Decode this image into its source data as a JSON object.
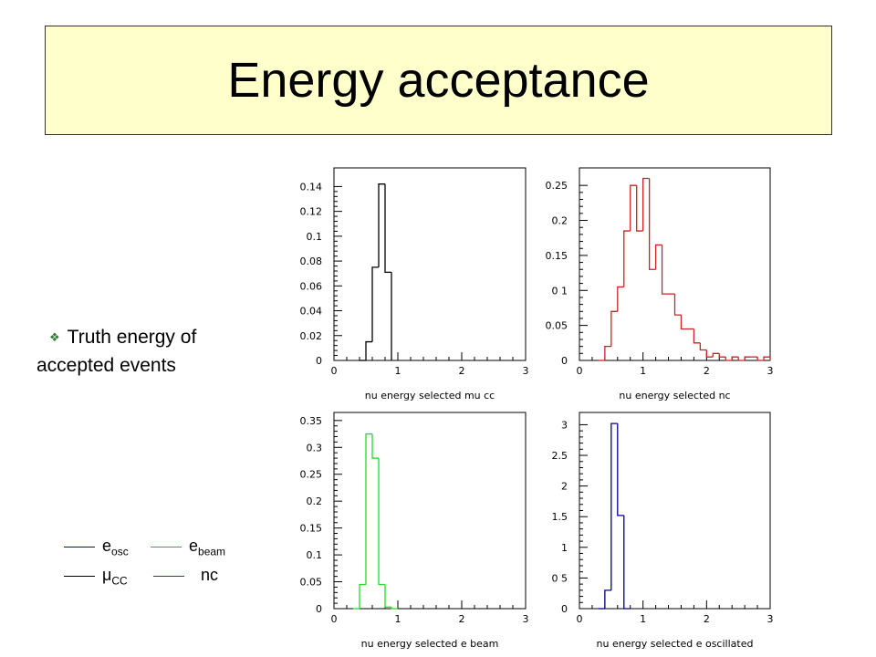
{
  "slide": {
    "title": "Energy acceptance",
    "bullet": {
      "icon": "diamond-bullet-icon",
      "line1": "Truth energy of",
      "line2": "accepted events"
    },
    "legend": [
      {
        "main": "e",
        "sub": "osc",
        "color": "#0000cc"
      },
      {
        "main": "e",
        "sub": "beam",
        "color": "#00cc00"
      },
      {
        "main": "μ",
        "sub": "CC",
        "color": "#000000"
      },
      {
        "main": "nc",
        "sub": "",
        "color": "#cc0000"
      }
    ]
  },
  "chart_data": [
    {
      "type": "histogram",
      "xlabel": "nu energy selected mu cc",
      "color": "#000000",
      "xlim": [
        0,
        3
      ],
      "ylim": [
        0,
        0.155
      ],
      "xticks": [
        0,
        1,
        2,
        3
      ],
      "yticks": [
        0,
        0.02,
        0.04,
        0.06,
        0.08,
        0.1,
        0.12,
        0.14
      ],
      "ytick_labels": [
        "0",
        "0.02",
        "0.04",
        "0.06",
        "0.08",
        "0.1",
        "0.12",
        "0.14"
      ],
      "bin_edges": [
        0.4,
        0.5,
        0.6,
        0.7,
        0.8,
        0.9
      ],
      "values": [
        0.0,
        0.015,
        0.075,
        0.142,
        0.071
      ]
    },
    {
      "type": "histogram",
      "xlabel": "nu energy selected nc",
      "color": "#cc2222",
      "xlim": [
        0,
        3
      ],
      "ylim": [
        0,
        0.275
      ],
      "xticks": [
        0,
        1,
        2,
        3
      ],
      "yticks": [
        0,
        0.05,
        0.1,
        0.15,
        0.2,
        0.25
      ],
      "ytick_labels": [
        "0",
        "0.05",
        "0 1",
        "0.15",
        "0.2",
        "0.25"
      ],
      "bin_edges": [
        0.3,
        0.4,
        0.5,
        0.6,
        0.7,
        0.8,
        0.9,
        1.0,
        1.1,
        1.2,
        1.3,
        1.4,
        1.5,
        1.6,
        1.7,
        1.8,
        1.9,
        2.0,
        2.1,
        2.2,
        2.3,
        2.4,
        2.5,
        2.6,
        2.7,
        2.8,
        2.9,
        3.0
      ],
      "values": [
        0.0,
        0.02,
        0.07,
        0.105,
        0.185,
        0.25,
        0.185,
        0.26,
        0.13,
        0.165,
        0.095,
        0.095,
        0.065,
        0.045,
        0.045,
        0.025,
        0.015,
        0.005,
        0.01,
        0.005,
        0.0,
        0.005,
        0.0,
        0.005,
        0.005,
        0.0,
        0.005
      ]
    },
    {
      "type": "histogram",
      "xlabel": "nu energy selected e beam",
      "color": "#22dd22",
      "xlim": [
        0,
        3
      ],
      "ylim": [
        0,
        0.365
      ],
      "xticks": [
        0,
        1,
        2,
        3
      ],
      "yticks": [
        0,
        0.05,
        0.1,
        0.15,
        0.2,
        0.25,
        0.3,
        0.35
      ],
      "ytick_labels": [
        "0",
        "0.05",
        "0.1",
        "0.15",
        "0.2",
        "0.25",
        "0.3",
        "0.35"
      ],
      "bin_edges": [
        0.3,
        0.4,
        0.5,
        0.6,
        0.7,
        0.8,
        0.9,
        1.0
      ],
      "values": [
        0.0,
        0.045,
        0.325,
        0.28,
        0.045,
        0.003,
        0.0
      ]
    },
    {
      "type": "histogram",
      "xlabel": "nu energy selected e oscillated",
      "color": "#000088",
      "xlim": [
        0,
        3
      ],
      "ylim": [
        0,
        3.2
      ],
      "xticks": [
        0,
        1,
        2,
        3
      ],
      "yticks": [
        0,
        0.5,
        1,
        1.5,
        2,
        2.5,
        3
      ],
      "ytick_labels": [
        "0",
        "0 5",
        "1",
        "1.5",
        "2",
        "2.5",
        "3"
      ],
      "bin_edges": [
        0.3,
        0.4,
        0.5,
        0.6,
        0.7,
        0.8
      ],
      "values": [
        0.0,
        0.3,
        3.02,
        1.52,
        0.0
      ]
    }
  ]
}
